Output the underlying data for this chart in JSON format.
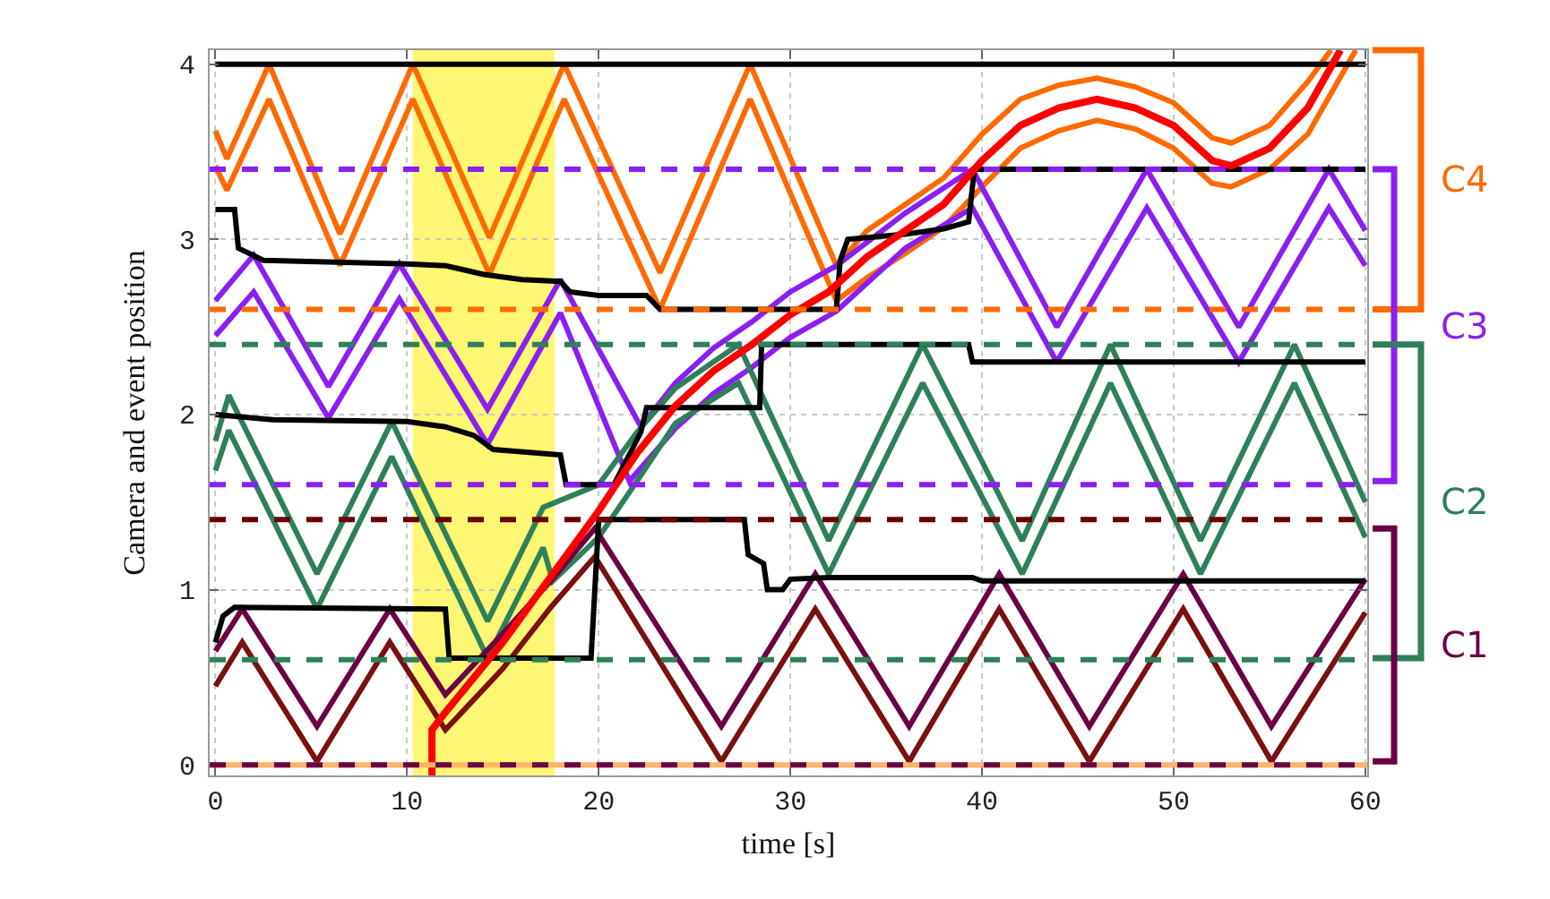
{
  "chart_data": {
    "type": "line",
    "xlabel": "time [s]",
    "ylabel": "Camera and event position",
    "xlim": [
      -0.3,
      60.1
    ],
    "ylim": [
      -0.06,
      4.08
    ],
    "xticks": [
      0,
      10,
      20,
      30,
      40,
      50,
      60
    ],
    "yticks": [
      0,
      1,
      2,
      3,
      4
    ],
    "grid": true,
    "series": [
      {
        "color": "#ff6a00",
        "x": [
          0,
          0.6,
          2.8,
          6.5,
          10.3,
          14.3,
          18.2,
          23.2,
          27.9,
          32.4,
          34,
          36,
          38,
          40,
          42,
          44,
          46,
          48,
          50,
          52,
          53,
          55,
          57,
          58.2
        ],
        "values": [
          3.62,
          3.46,
          4.0,
          3.03,
          4.0,
          3.01,
          4.0,
          2.81,
          4.0,
          2.85,
          3.05,
          3.2,
          3.35,
          3.6,
          3.8,
          3.88,
          3.92,
          3.87,
          3.78,
          3.58,
          3.55,
          3.65,
          3.9,
          4.08
        ]
      },
      {
        "color": "#ff6a00",
        "x": [
          0,
          0.6,
          2.8,
          6.5,
          10.3,
          14.3,
          18.2,
          23.2,
          27.9,
          32.4,
          34,
          36,
          38,
          40,
          42,
          44,
          46,
          48,
          50,
          52,
          53,
          55,
          57,
          59.5
        ],
        "values": [
          3.42,
          3.28,
          3.8,
          2.85,
          3.8,
          2.8,
          3.8,
          2.6,
          3.8,
          2.65,
          2.78,
          2.92,
          3.07,
          3.3,
          3.52,
          3.62,
          3.68,
          3.63,
          3.52,
          3.32,
          3.3,
          3.4,
          3.6,
          4.08
        ]
      },
      {
        "color": "#8a1ff0",
        "x": [
          0,
          2,
          5.9,
          9.6,
          14.2,
          18,
          22.2,
          24,
          26,
          28,
          30,
          32.4,
          36,
          39.5,
          43.9,
          48.6,
          53.4,
          58.1,
          60
        ],
        "values": [
          2.65,
          2.91,
          2.16,
          2.86,
          2.03,
          2.77,
          1.93,
          2.18,
          2.38,
          2.53,
          2.7,
          2.85,
          3.15,
          3.4,
          2.5,
          3.4,
          2.5,
          3.4,
          3.05
        ]
      },
      {
        "color": "#8a1ff0",
        "x": [
          0,
          2,
          5.9,
          9.6,
          14.2,
          18,
          21.6,
          24,
          26,
          28,
          30,
          32.4,
          36,
          39.5,
          43.9,
          48.6,
          53.4,
          58.1,
          60
        ],
        "values": [
          2.45,
          2.7,
          1.98,
          2.66,
          1.83,
          2.58,
          1.62,
          1.92,
          2.12,
          2.27,
          2.44,
          2.59,
          2.95,
          3.18,
          2.3,
          3.18,
          2.3,
          3.18,
          2.85
        ]
      },
      {
        "color": "#2e805a",
        "x": [
          0,
          0.7,
          5.3,
          9.2,
          14.2,
          17.1,
          20,
          22,
          24,
          27.3,
          32,
          36.9,
          42.1,
          46.7,
          51.4,
          56.3,
          60
        ],
        "values": [
          1.85,
          2.11,
          1.09,
          1.96,
          0.82,
          1.47,
          1.6,
          1.9,
          2.15,
          2.4,
          1.28,
          2.4,
          1.28,
          2.4,
          1.28,
          2.4,
          1.5
        ]
      },
      {
        "color": "#2e805a",
        "x": [
          0,
          0.7,
          5.3,
          9.2,
          14.2,
          17.1,
          17.6,
          20,
          22,
          24,
          27.3,
          32,
          36.9,
          42.1,
          46.7,
          51.4,
          56.3,
          60
        ],
        "values": [
          1.68,
          1.91,
          0.89,
          1.76,
          0.61,
          1.24,
          1.05,
          1.3,
          1.62,
          1.95,
          2.18,
          1.09,
          2.18,
          1.09,
          2.18,
          1.09,
          2.18,
          1.3
        ]
      },
      {
        "color": "#6b0044",
        "x": [
          0,
          1.4,
          5.3,
          9.1,
          12,
          15,
          17.5,
          19.8,
          26.4,
          31.3,
          36.2,
          40.9,
          45.6,
          50.5,
          55.1,
          60
        ],
        "values": [
          0.65,
          0.89,
          0.22,
          0.89,
          0.4,
          0.75,
          1.05,
          1.35,
          0.22,
          1.09,
          0.22,
          1.09,
          0.22,
          1.09,
          0.22,
          1.06
        ]
      },
      {
        "color": "#7a1010",
        "x": [
          0,
          1.4,
          5.3,
          9.1,
          12,
          15,
          17.5,
          19.8,
          26.4,
          31.3,
          36.2,
          40.9,
          45.6,
          50.5,
          55.1,
          60
        ],
        "values": [
          0.45,
          0.7,
          0.02,
          0.7,
          0.2,
          0.55,
          0.9,
          1.19,
          0.02,
          0.89,
          0.02,
          0.89,
          0.02,
          0.89,
          0.02,
          0.87
        ]
      },
      {
        "color": "#000000",
        "x": [
          0,
          60
        ],
        "values": [
          4.0,
          4.0
        ]
      },
      {
        "color": "#000000",
        "x": [
          0,
          1,
          1.2,
          2.5,
          10,
          12,
          14,
          16,
          18,
          18.5,
          20,
          22.5,
          23.2,
          32.4,
          32.6,
          33,
          36,
          38,
          39.3,
          39.6,
          60
        ],
        "values": [
          3.17,
          3.17,
          2.95,
          2.88,
          2.86,
          2.85,
          2.8,
          2.77,
          2.76,
          2.7,
          2.68,
          2.68,
          2.6,
          2.6,
          2.88,
          3.0,
          3.03,
          3.06,
          3.1,
          3.4,
          3.4
        ]
      },
      {
        "color": "#000000",
        "x": [
          0,
          3,
          10,
          12,
          13.5,
          14.5,
          18,
          18.3,
          20.8,
          22.2,
          22.5,
          28.4,
          28.5,
          39.3,
          39.5,
          60
        ],
        "values": [
          2.0,
          1.97,
          1.96,
          1.93,
          1.88,
          1.8,
          1.77,
          1.6,
          1.6,
          1.9,
          2.04,
          2.04,
          2.4,
          2.4,
          2.3,
          2.3
        ]
      },
      {
        "color": "#000000",
        "x": [
          0,
          0.4,
          1,
          12,
          12.2,
          19.6,
          20,
          27.6,
          27.8,
          28.6,
          28.8,
          29.6,
          30,
          32,
          39.5,
          40,
          60
        ],
        "values": [
          0.7,
          0.85,
          0.9,
          0.89,
          0.61,
          0.61,
          1.4,
          1.4,
          1.2,
          1.15,
          1.0,
          1.0,
          1.06,
          1.07,
          1.07,
          1.05,
          1.05
        ]
      },
      {
        "color": "#ff0000",
        "x": [
          11.3,
          11.3,
          12,
          15,
          18,
          20,
          22,
          24,
          26,
          28,
          30,
          32,
          34,
          36,
          38,
          40,
          42,
          44,
          46,
          48,
          50,
          52,
          53,
          55,
          57,
          58.7
        ],
        "values": [
          -0.06,
          0.2,
          0.3,
          0.7,
          1.15,
          1.45,
          1.78,
          2.05,
          2.25,
          2.4,
          2.57,
          2.7,
          2.9,
          3.05,
          3.2,
          3.45,
          3.65,
          3.75,
          3.8,
          3.75,
          3.65,
          3.45,
          3.42,
          3.52,
          3.75,
          4.08
        ]
      }
    ],
    "ref_lines": [
      {
        "axis": "y",
        "value": 0,
        "color": "#ffb366",
        "line_style": "solid"
      },
      {
        "axis": "y",
        "value": 0,
        "color": "#6b0044",
        "line_style": "dashed"
      },
      {
        "axis": "y",
        "value": 0.6,
        "color": "#2e805a",
        "line_style": "dashed"
      },
      {
        "axis": "y",
        "value": 1.4,
        "color": "#6b0000",
        "line_style": "dashed"
      },
      {
        "axis": "y",
        "value": 1.6,
        "color": "#8a1ff0",
        "line_style": "dashed"
      },
      {
        "axis": "y",
        "value": 2.4,
        "color": "#2e805a",
        "line_style": "dashed"
      },
      {
        "axis": "y",
        "value": 2.6,
        "color": "#ff6a00",
        "line_style": "dashed"
      },
      {
        "axis": "y",
        "value": 3.4,
        "color": "#8a1ff0",
        "line_style": "dashed"
      }
    ],
    "bands": [
      {
        "axis": "x",
        "from": 10.3,
        "to": 17.7,
        "color": "#fff673"
      }
    ],
    "annotations": [
      "C4",
      "C3",
      "C2",
      "C1"
    ]
  }
}
